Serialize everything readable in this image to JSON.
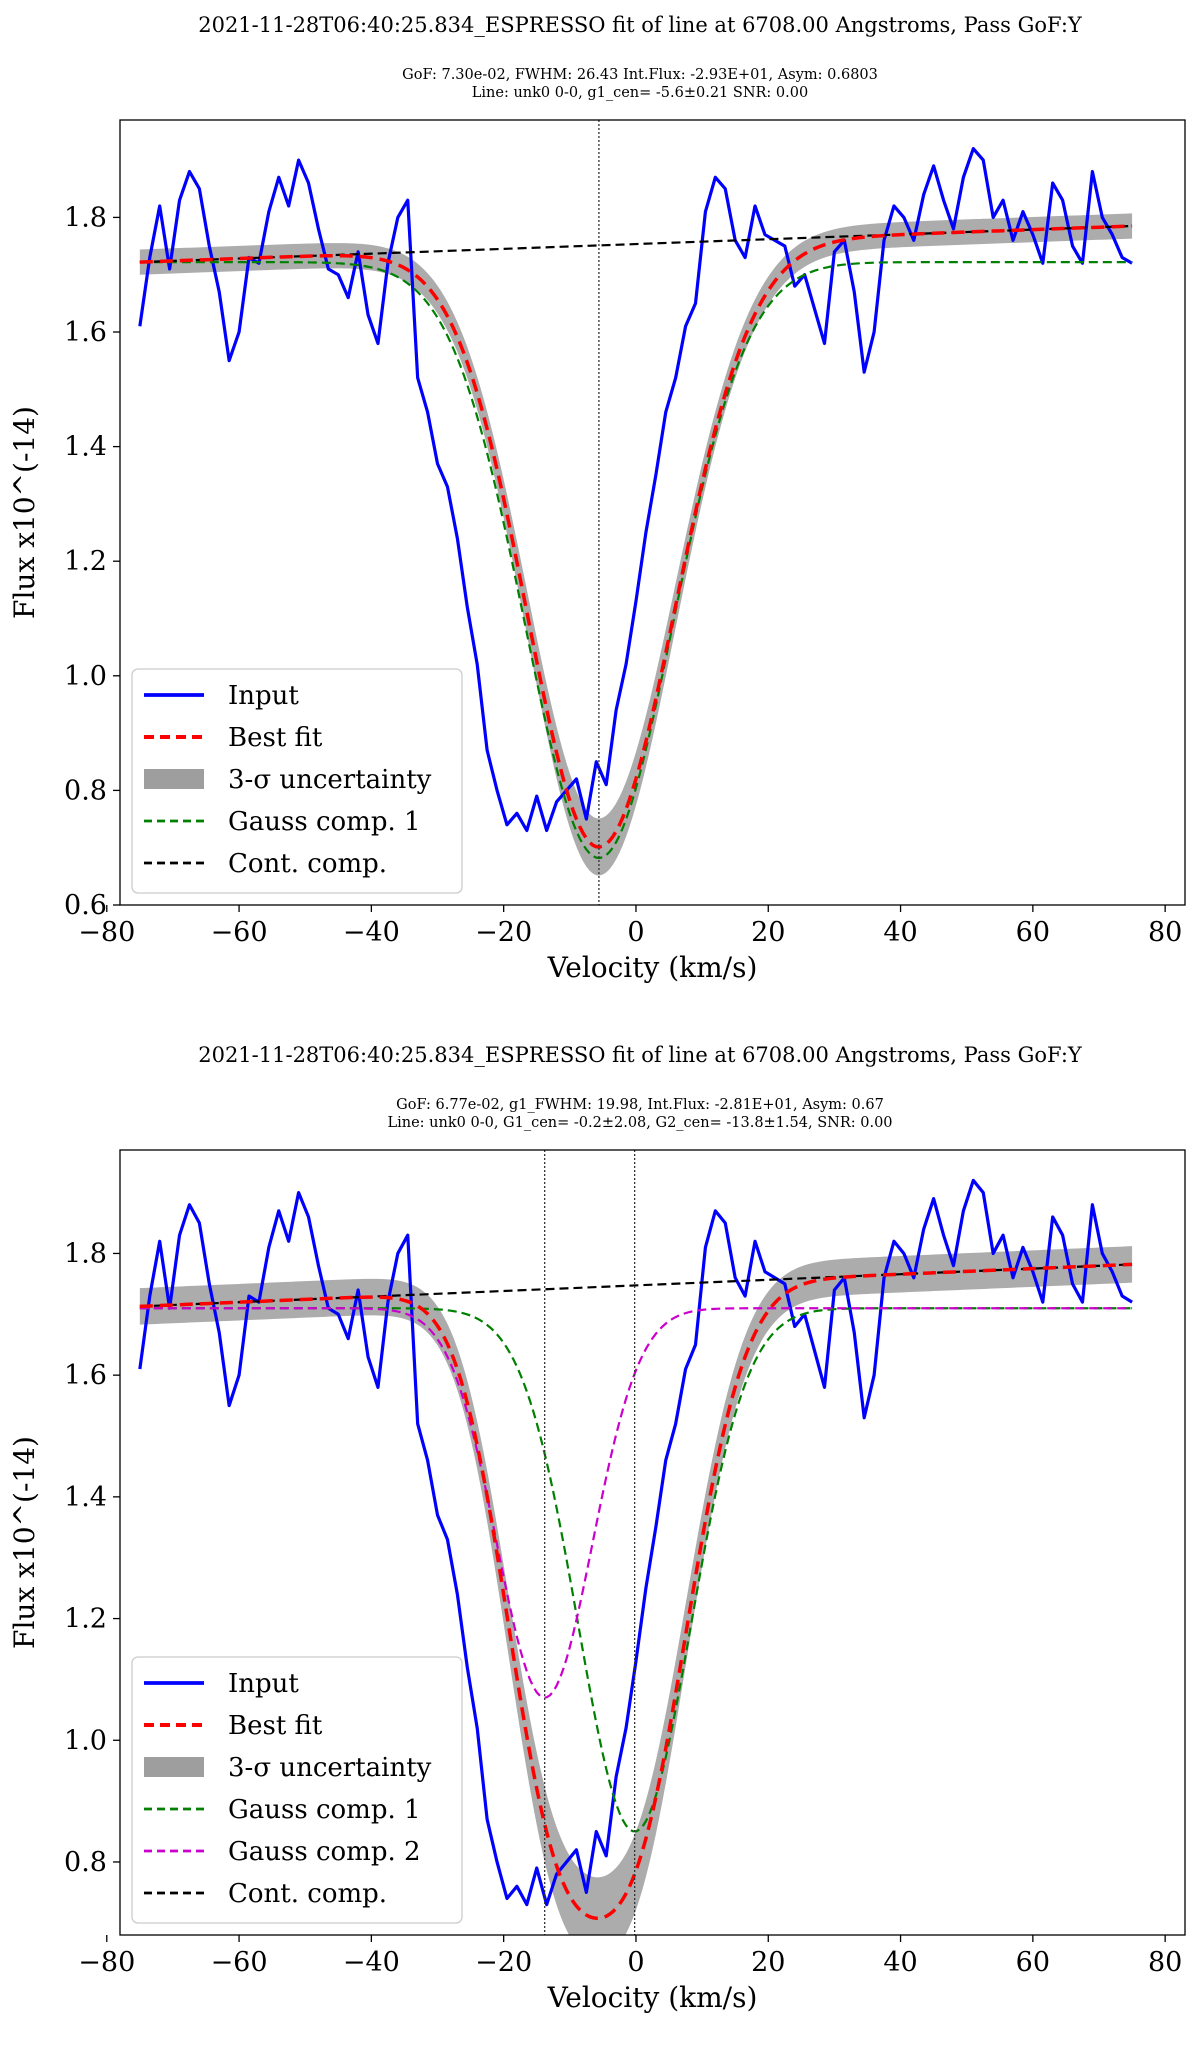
{
  "figure": {
    "chart_data": [
      {
        "type": "line",
        "title": "2021-11-28T06:40:25.834_ESPRESSO fit of line at 6708.00 Angstroms,    Pass GoF:Y",
        "subtitle": [
          "GoF: 7.30e-02, FWHM: 26.43 Int.Flux: -2.93E+01, Asym: 0.6803",
          "Line: unk0 0-0, g1_cen= -5.6±0.21 SNR: 0.00"
        ],
        "xlabel": "Velocity (km/s)",
        "ylabel": "Flux x10^(-14)",
        "xlim": [
          -78,
          83
        ],
        "ylim": [
          0.6,
          1.97
        ],
        "xticks": [
          -80,
          -60,
          -40,
          -20,
          0,
          20,
          40,
          60,
          80
        ],
        "xtick_labels": [
          "−80",
          "−60",
          "−40",
          "−20",
          "0",
          "20",
          "40",
          "60",
          "80"
        ],
        "yticks": [
          0.6,
          0.8,
          1.0,
          1.2,
          1.4,
          1.6,
          1.8
        ],
        "ytick_labels": [
          "0.6",
          "0.8",
          "1.0",
          "1.2",
          "1.4",
          "1.6",
          "1.8"
        ],
        "vlines": [
          -5.6
        ],
        "legend": {
          "position": "lower-left",
          "entries": [
            "Input",
            "Best fit",
            "3-σ uncertainty",
            "Gauss comp. 1",
            "Cont. comp."
          ]
        },
        "continuum": {
          "x": [
            -75,
            75
          ],
          "y": [
            1.722,
            1.785
          ]
        },
        "gauss_components": [
          {
            "name": "Gauss comp. 1",
            "color": "#008000",
            "base": 1.722,
            "amp": -1.04,
            "center": -5.6,
            "sigma": 11.2,
            "asym": 0.0
          }
        ],
        "best_fit": {
          "center": -5.6,
          "depth_at_center": 1.05,
          "sigma": 11.2,
          "asym": 0.03,
          "unc": 0.022
        },
        "series": [
          {
            "name": "Input",
            "color": "#0000ff",
            "x": [
              -75,
              -73.5,
              -72,
              -70.5,
              -69,
              -67.5,
              -66,
              -64.5,
              -63,
              -61.5,
              -60,
              -58.5,
              -57,
              -55.5,
              -54,
              -52.5,
              -51,
              -49.5,
              -48,
              -46.5,
              -45,
              -43.5,
              -42,
              -40.5,
              -39,
              -37.5,
              -36,
              -34.5,
              -33,
              -31.5,
              -30,
              -28.5,
              -27,
              -25.5,
              -24,
              -22.5,
              -21,
              -19.5,
              -18,
              -16.5,
              -15,
              -13.5,
              -12,
              -10.5,
              -9,
              -7.5,
              -6,
              -4.5,
              -3,
              -1.5,
              0,
              1.5,
              3,
              4.5,
              6,
              7.5,
              9,
              10.5,
              12,
              13.5,
              15,
              16.5,
              18,
              19.5,
              21,
              22.5,
              24,
              25.5,
              27,
              28.5,
              30,
              31.5,
              33,
              34.5,
              36,
              37.5,
              39,
              40.5,
              42,
              43.5,
              45,
              46.5,
              48,
              49.5,
              51,
              52.5,
              54,
              55.5,
              57,
              58.5,
              60,
              61.5,
              63,
              64.5,
              66,
              67.5,
              69,
              70.5,
              72,
              73.5,
              75
            ],
            "y": [
              1.61,
              1.73,
              1.82,
              1.71,
              1.83,
              1.88,
              1.85,
              1.75,
              1.67,
              1.55,
              1.6,
              1.73,
              1.72,
              1.81,
              1.87,
              1.82,
              1.9,
              1.86,
              1.78,
              1.71,
              1.7,
              1.66,
              1.74,
              1.63,
              1.58,
              1.72,
              1.8,
              1.83,
              1.52,
              1.46,
              1.37,
              1.33,
              1.24,
              1.12,
              1.02,
              0.87,
              0.8,
              0.74,
              0.76,
              0.73,
              0.79,
              0.73,
              0.78,
              0.8,
              0.82,
              0.75,
              0.85,
              0.81,
              0.94,
              1.02,
              1.13,
              1.25,
              1.35,
              1.46,
              1.52,
              1.61,
              1.65,
              1.81,
              1.87,
              1.85,
              1.76,
              1.73,
              1.82,
              1.77,
              1.76,
              1.75,
              1.68,
              1.7,
              1.64,
              1.58,
              1.74,
              1.76,
              1.67,
              1.53,
              1.6,
              1.76,
              1.82,
              1.8,
              1.76,
              1.84,
              1.89,
              1.83,
              1.78,
              1.87,
              1.92,
              1.9,
              1.8,
              1.83,
              1.76,
              1.81,
              1.77,
              1.72,
              1.86,
              1.83,
              1.75,
              1.72,
              1.88,
              1.8,
              1.77,
              1.73,
              1.72
            ]
          }
        ]
      },
      {
        "type": "line",
        "title": "2021-11-28T06:40:25.834_ESPRESSO fit of line at 6708.00 Angstroms,    Pass GoF:Y",
        "subtitle": [
          "GoF: 6.77e-02, g1_FWHM: 19.98, Int.Flux: -2.81E+01, Asym: 0.67",
          "Line: unk0 0-0, G1_cen= -0.2±2.08, G2_cen= -13.8±1.54, SNR: 0.00"
        ],
        "xlabel": "Velocity (km/s)",
        "ylabel": "Flux x10^(-14)",
        "xlim": [
          -78,
          83
        ],
        "ylim": [
          0.68,
          1.97
        ],
        "xticks": [
          -80,
          -60,
          -40,
          -20,
          0,
          20,
          40,
          60,
          80
        ],
        "xtick_labels": [
          "−80",
          "−60",
          "−40",
          "−20",
          "0",
          "20",
          "40",
          "60",
          "80"
        ],
        "yticks": [
          0.8,
          1.0,
          1.2,
          1.4,
          1.6,
          1.8
        ],
        "ytick_labels": [
          "0.8",
          "1.0",
          "1.2",
          "1.4",
          "1.6",
          "1.8"
        ],
        "vlines": [
          -13.8,
          -0.2
        ],
        "legend": {
          "position": "lower-left",
          "entries": [
            "Input",
            "Best fit",
            "3-σ uncertainty",
            "Gauss comp. 1",
            "Gauss comp. 2",
            "Cont. comp."
          ]
        },
        "continuum": {
          "x": [
            -75,
            75
          ],
          "y": [
            1.713,
            1.782
          ]
        },
        "gauss_components": [
          {
            "name": "Gauss comp. 1",
            "color": "#008000",
            "base": 1.71,
            "amp": -0.86,
            "center": -0.2,
            "sigma": 8.5,
            "asym": 0.0
          },
          {
            "name": "Gauss comp. 2",
            "color": "#cc00cc",
            "base": 1.71,
            "amp": -0.64,
            "center": -13.8,
            "sigma": 7.2,
            "asym": 0.0
          }
        ],
        "best_fit": {
          "unc": 0.03
        },
        "series": [
          {
            "name": "Input",
            "color": "#0000ff",
            "x": [
              -75,
              -73.5,
              -72,
              -70.5,
              -69,
              -67.5,
              -66,
              -64.5,
              -63,
              -61.5,
              -60,
              -58.5,
              -57,
              -55.5,
              -54,
              -52.5,
              -51,
              -49.5,
              -48,
              -46.5,
              -45,
              -43.5,
              -42,
              -40.5,
              -39,
              -37.5,
              -36,
              -34.5,
              -33,
              -31.5,
              -30,
              -28.5,
              -27,
              -25.5,
              -24,
              -22.5,
              -21,
              -19.5,
              -18,
              -16.5,
              -15,
              -13.5,
              -12,
              -10.5,
              -9,
              -7.5,
              -6,
              -4.5,
              -3,
              -1.5,
              0,
              1.5,
              3,
              4.5,
              6,
              7.5,
              9,
              10.5,
              12,
              13.5,
              15,
              16.5,
              18,
              19.5,
              21,
              22.5,
              24,
              25.5,
              27,
              28.5,
              30,
              31.5,
              33,
              34.5,
              36,
              37.5,
              39,
              40.5,
              42,
              43.5,
              45,
              46.5,
              48,
              49.5,
              51,
              52.5,
              54,
              55.5,
              57,
              58.5,
              60,
              61.5,
              63,
              64.5,
              66,
              67.5,
              69,
              70.5,
              72,
              73.5,
              75
            ],
            "y": [
              1.61,
              1.73,
              1.82,
              1.71,
              1.83,
              1.88,
              1.85,
              1.75,
              1.67,
              1.55,
              1.6,
              1.73,
              1.72,
              1.81,
              1.87,
              1.82,
              1.9,
              1.86,
              1.78,
              1.71,
              1.7,
              1.66,
              1.74,
              1.63,
              1.58,
              1.72,
              1.8,
              1.83,
              1.52,
              1.46,
              1.37,
              1.33,
              1.24,
              1.12,
              1.02,
              0.87,
              0.8,
              0.74,
              0.76,
              0.73,
              0.79,
              0.73,
              0.78,
              0.8,
              0.82,
              0.75,
              0.85,
              0.81,
              0.94,
              1.02,
              1.13,
              1.25,
              1.35,
              1.46,
              1.52,
              1.61,
              1.65,
              1.81,
              1.87,
              1.85,
              1.76,
              1.73,
              1.82,
              1.77,
              1.76,
              1.75,
              1.68,
              1.7,
              1.64,
              1.58,
              1.74,
              1.76,
              1.67,
              1.53,
              1.6,
              1.76,
              1.82,
              1.8,
              1.76,
              1.84,
              1.89,
              1.83,
              1.78,
              1.87,
              1.92,
              1.9,
              1.8,
              1.83,
              1.76,
              1.81,
              1.77,
              1.72,
              1.86,
              1.83,
              1.75,
              1.72,
              1.88,
              1.8,
              1.77,
              1.73,
              1.72
            ]
          }
        ]
      }
    ]
  }
}
